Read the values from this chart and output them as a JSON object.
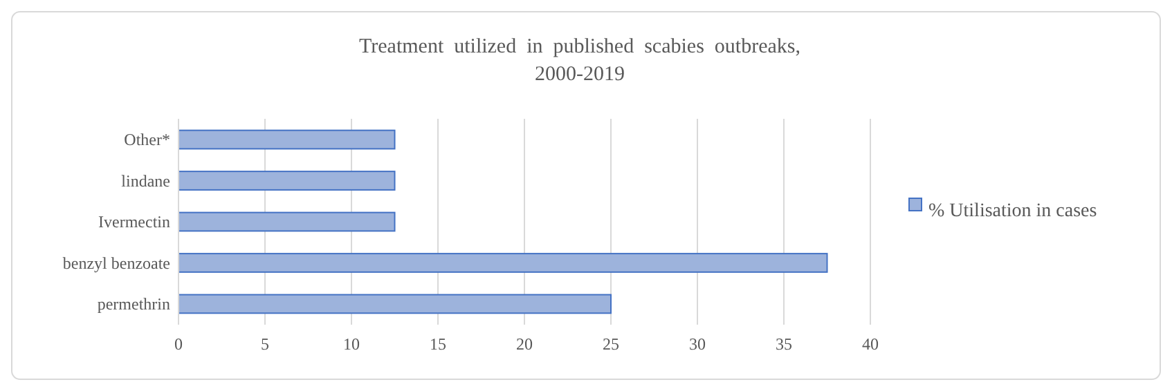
{
  "chart_data": {
    "type": "bar",
    "orientation": "horizontal",
    "title": "Treatment  utilized  in  published  scabies  outbreaks,\n2000-2019",
    "categories": [
      "Other*",
      "lindane",
      "Ivermectin",
      "benzyl benzoate",
      "permethrin"
    ],
    "series": [
      {
        "name": "% Utilisation in cases",
        "color": "#9db3dc",
        "values": [
          12.5,
          12.5,
          12.5,
          37.5,
          25
        ]
      }
    ],
    "xlim": [
      0,
      40
    ],
    "xticks": [
      0,
      5,
      10,
      15,
      20,
      25,
      30,
      35,
      40
    ],
    "grid": "x",
    "legend": "right"
  }
}
